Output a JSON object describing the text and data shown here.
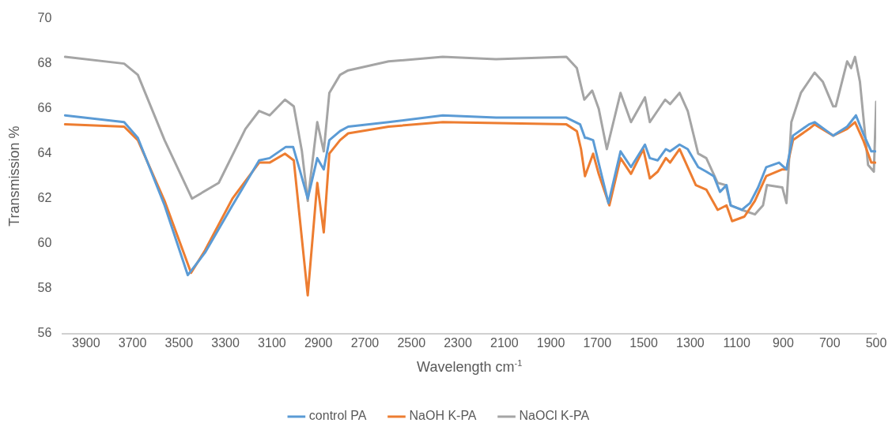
{
  "chart_data": {
    "type": "line",
    "xlabel": "Wavelength cm$^{-1}$",
    "ylabel": "Transmission %",
    "xlim": [
      4000,
      500
    ],
    "xticks": [
      3900,
      3700,
      3500,
      3300,
      3100,
      2900,
      2700,
      2500,
      2300,
      2100,
      1900,
      1700,
      1500,
      1300,
      1100,
      900,
      700,
      500
    ],
    "ylim": [
      56,
      70
    ],
    "yticks": [
      56,
      58,
      60,
      62,
      64,
      66,
      68,
      70
    ],
    "grid": false,
    "legend": "bottom",
    "marker": "none",
    "line_style": "solid",
    "series": [
      {
        "name": "control PA",
        "color": "#5b9bd5",
        "x": [
          3990,
          3736,
          3677,
          3562,
          3462,
          3388,
          3270,
          3155,
          3110,
          3040,
          3009,
          2981,
          2946,
          2905,
          2877,
          2853,
          2807,
          2772,
          2598,
          2365,
          2136,
          1833,
          1774,
          1753,
          1746,
          1718,
          1652,
          1600,
          1555,
          1495,
          1474,
          1440,
          1405,
          1387,
          1346,
          1311,
          1266,
          1231,
          1199,
          1172,
          1144,
          1126,
          1078,
          1043,
          1008,
          973,
          918,
          886,
          858,
          789,
          765,
          685,
          625,
          587,
          556,
          521,
          504
        ],
        "values": [
          65.7,
          65.4,
          64.7,
          61.7,
          58.6,
          59.6,
          61.7,
          63.7,
          63.8,
          64.3,
          64.3,
          63.3,
          62.0,
          63.8,
          63.3,
          64.6,
          65.0,
          65.2,
          65.4,
          65.7,
          65.6,
          65.6,
          65.3,
          64.7,
          64.7,
          64.6,
          61.8,
          64.1,
          63.4,
          64.4,
          63.8,
          63.7,
          64.2,
          64.1,
          64.4,
          64.2,
          63.4,
          63.2,
          63.0,
          62.3,
          62.6,
          61.7,
          61.5,
          61.8,
          62.5,
          63.4,
          63.6,
          63.3,
          64.8,
          65.3,
          65.4,
          64.8,
          65.2,
          65.7,
          64.9,
          64.1,
          64.1
        ]
      },
      {
        "name": "NaOH K-PA",
        "color": "#ed7d31",
        "x": [
          3990,
          3736,
          3677,
          3562,
          3448,
          3388,
          3270,
          3155,
          3110,
          3044,
          3006,
          2981,
          2946,
          2905,
          2877,
          2853,
          2807,
          2772,
          2598,
          2365,
          1833,
          1788,
          1770,
          1753,
          1718,
          1694,
          1648,
          1600,
          1555,
          1502,
          1474,
          1440,
          1405,
          1387,
          1346,
          1276,
          1231,
          1182,
          1144,
          1120,
          1067,
          1022,
          973,
          904,
          886,
          858,
          789,
          765,
          685,
          625,
          591,
          556,
          521,
          504
        ],
        "values": [
          65.3,
          65.2,
          64.6,
          61.9,
          58.7,
          59.7,
          62.0,
          63.6,
          63.6,
          64.0,
          63.7,
          61.2,
          57.7,
          62.7,
          60.5,
          64.0,
          64.6,
          64.9,
          65.2,
          65.4,
          65.3,
          65.0,
          64.2,
          63.0,
          64.0,
          63.1,
          61.7,
          63.8,
          63.1,
          64.2,
          62.9,
          63.2,
          63.8,
          63.6,
          64.2,
          62.6,
          62.4,
          61.5,
          61.7,
          61.0,
          61.2,
          61.9,
          63.0,
          63.3,
          63.3,
          64.6,
          65.1,
          65.3,
          64.8,
          65.1,
          65.4,
          64.6,
          63.6,
          63.6
        ]
      },
      {
        "name": "NaOCl K-PA",
        "color": "#a5a5a5",
        "x": [
          3990,
          3736,
          3677,
          3562,
          3444,
          3329,
          3214,
          3155,
          3110,
          3044,
          3006,
          2971,
          2946,
          2905,
          2877,
          2853,
          2807,
          2772,
          2598,
          2365,
          2136,
          1833,
          1788,
          1756,
          1722,
          1694,
          1659,
          1600,
          1555,
          1495,
          1474,
          1408,
          1387,
          1346,
          1311,
          1266,
          1231,
          1182,
          1147,
          1126,
          1078,
          1022,
          987,
          970,
          904,
          886,
          865,
          824,
          765,
          730,
          685,
          674,
          625,
          608,
          591,
          570,
          535,
          510,
          500
        ],
        "values": [
          68.3,
          68.0,
          67.5,
          64.6,
          62.0,
          62.7,
          65.1,
          65.9,
          65.7,
          66.4,
          66.1,
          64.1,
          61.9,
          65.4,
          64.1,
          66.7,
          67.5,
          67.7,
          68.1,
          68.3,
          68.2,
          68.3,
          67.8,
          66.4,
          66.8,
          66.0,
          64.2,
          66.7,
          65.4,
          66.5,
          65.4,
          66.4,
          66.2,
          66.7,
          65.9,
          64.0,
          63.8,
          62.7,
          62.6,
          61.7,
          61.5,
          61.3,
          61.7,
          62.6,
          62.5,
          61.8,
          65.4,
          66.7,
          67.6,
          67.2,
          66.1,
          66.1,
          68.1,
          67.8,
          68.3,
          67.2,
          63.5,
          63.2,
          66.3
        ]
      }
    ]
  }
}
